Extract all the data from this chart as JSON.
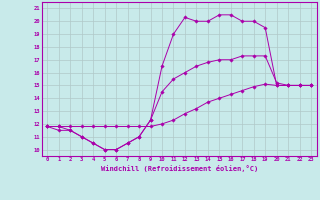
{
  "xlabel": "Windchill (Refroidissement éolien,°C)",
  "bg_color": "#c8eaea",
  "grid_color": "#b0c8c8",
  "line_color": "#aa00aa",
  "spine_color": "#aa00aa",
  "xlim": [
    -0.5,
    23.5
  ],
  "ylim": [
    9.5,
    21.5
  ],
  "xticks": [
    0,
    1,
    2,
    3,
    4,
    5,
    6,
    7,
    8,
    9,
    10,
    11,
    12,
    13,
    14,
    15,
    16,
    17,
    18,
    19,
    20,
    21,
    22,
    23
  ],
  "yticks": [
    10,
    11,
    12,
    13,
    14,
    15,
    16,
    17,
    18,
    19,
    20,
    21
  ],
  "series": [
    {
      "x": [
        0,
        1,
        2,
        3,
        4,
        5,
        6,
        7,
        8,
        9,
        10,
        11,
        12,
        13,
        14,
        15,
        16,
        17,
        18,
        19,
        20,
        21,
        22,
        23
      ],
      "y": [
        11.8,
        11.8,
        11.5,
        11.0,
        10.5,
        10.0,
        10.0,
        10.5,
        11.0,
        12.3,
        16.5,
        19.0,
        20.3,
        20.0,
        20.0,
        20.5,
        20.5,
        20.0,
        20.0,
        19.5,
        15.0,
        15.0,
        15.0,
        15.0
      ]
    },
    {
      "x": [
        0,
        1,
        2,
        3,
        4,
        5,
        6,
        7,
        8,
        9,
        10,
        11,
        12,
        13,
        14,
        15,
        16,
        17,
        18,
        19,
        20,
        21,
        22,
        23
      ],
      "y": [
        11.8,
        11.5,
        11.5,
        11.0,
        10.5,
        10.0,
        10.0,
        10.5,
        11.0,
        12.3,
        14.5,
        15.5,
        16.0,
        16.5,
        16.8,
        17.0,
        17.0,
        17.3,
        17.3,
        17.3,
        15.2,
        15.0,
        15.0,
        15.0
      ]
    },
    {
      "x": [
        0,
        1,
        2,
        3,
        4,
        5,
        6,
        7,
        8,
        9,
        10,
        11,
        12,
        13,
        14,
        15,
        16,
        17,
        18,
        19,
        20,
        21,
        22,
        23
      ],
      "y": [
        11.8,
        11.8,
        11.8,
        11.8,
        11.8,
        11.8,
        11.8,
        11.8,
        11.8,
        11.8,
        12.0,
        12.3,
        12.8,
        13.2,
        13.7,
        14.0,
        14.3,
        14.6,
        14.9,
        15.1,
        15.0,
        15.0,
        15.0,
        15.0
      ]
    }
  ]
}
